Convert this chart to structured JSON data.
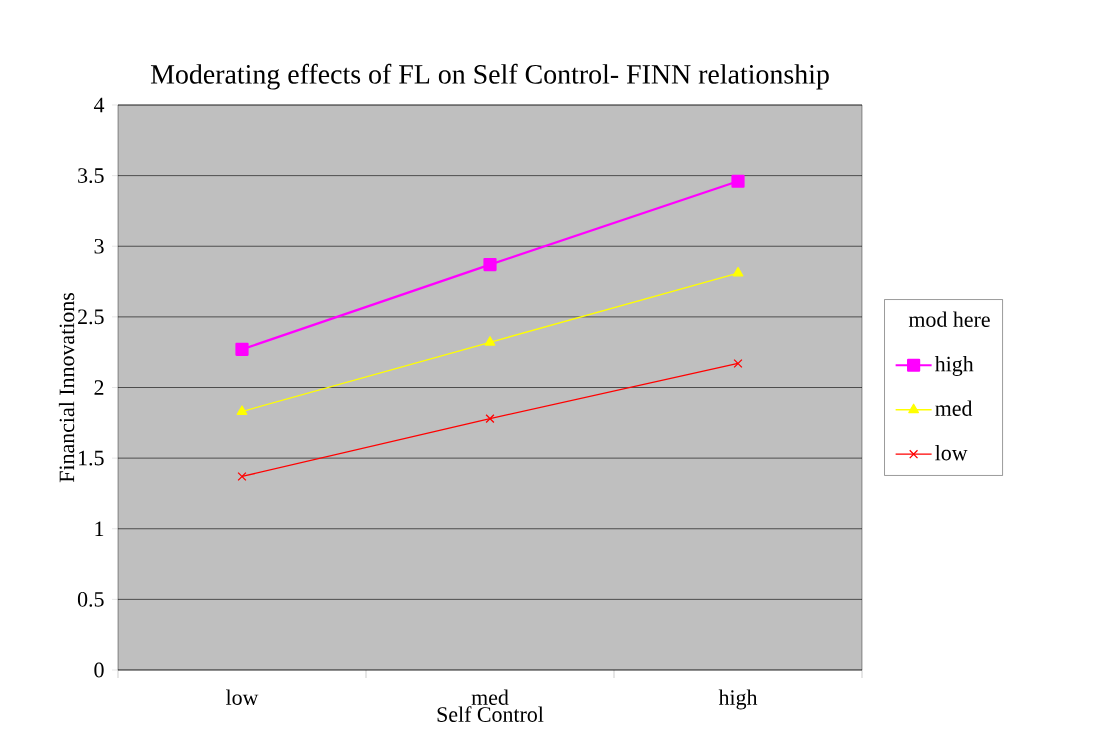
{
  "chart_data": {
    "type": "line",
    "title": "Moderating  effects of FL on Self Control- FINN relationship",
    "xlabel": "Self Control",
    "ylabel": "Financial Innovations",
    "legend_title": "mod here",
    "categories": [
      "low",
      "med",
      "high"
    ],
    "series": [
      {
        "name": "high",
        "color": "#ff00ff",
        "marker": "square",
        "values": [
          2.27,
          2.87,
          3.46
        ]
      },
      {
        "name": "med",
        "color": "#ffff00",
        "marker": "triangle",
        "values": [
          1.83,
          2.32,
          2.81
        ]
      },
      {
        "name": "low",
        "color": "#ff0000",
        "marker": "cross",
        "values": [
          1.37,
          1.78,
          2.17
        ]
      }
    ],
    "ylim": [
      0,
      4
    ],
    "yticks": [
      0,
      0.5,
      1,
      1.5,
      2,
      2.5,
      3,
      3.5,
      4
    ],
    "grid": "y",
    "legend": "right",
    "line_style": "solid"
  }
}
